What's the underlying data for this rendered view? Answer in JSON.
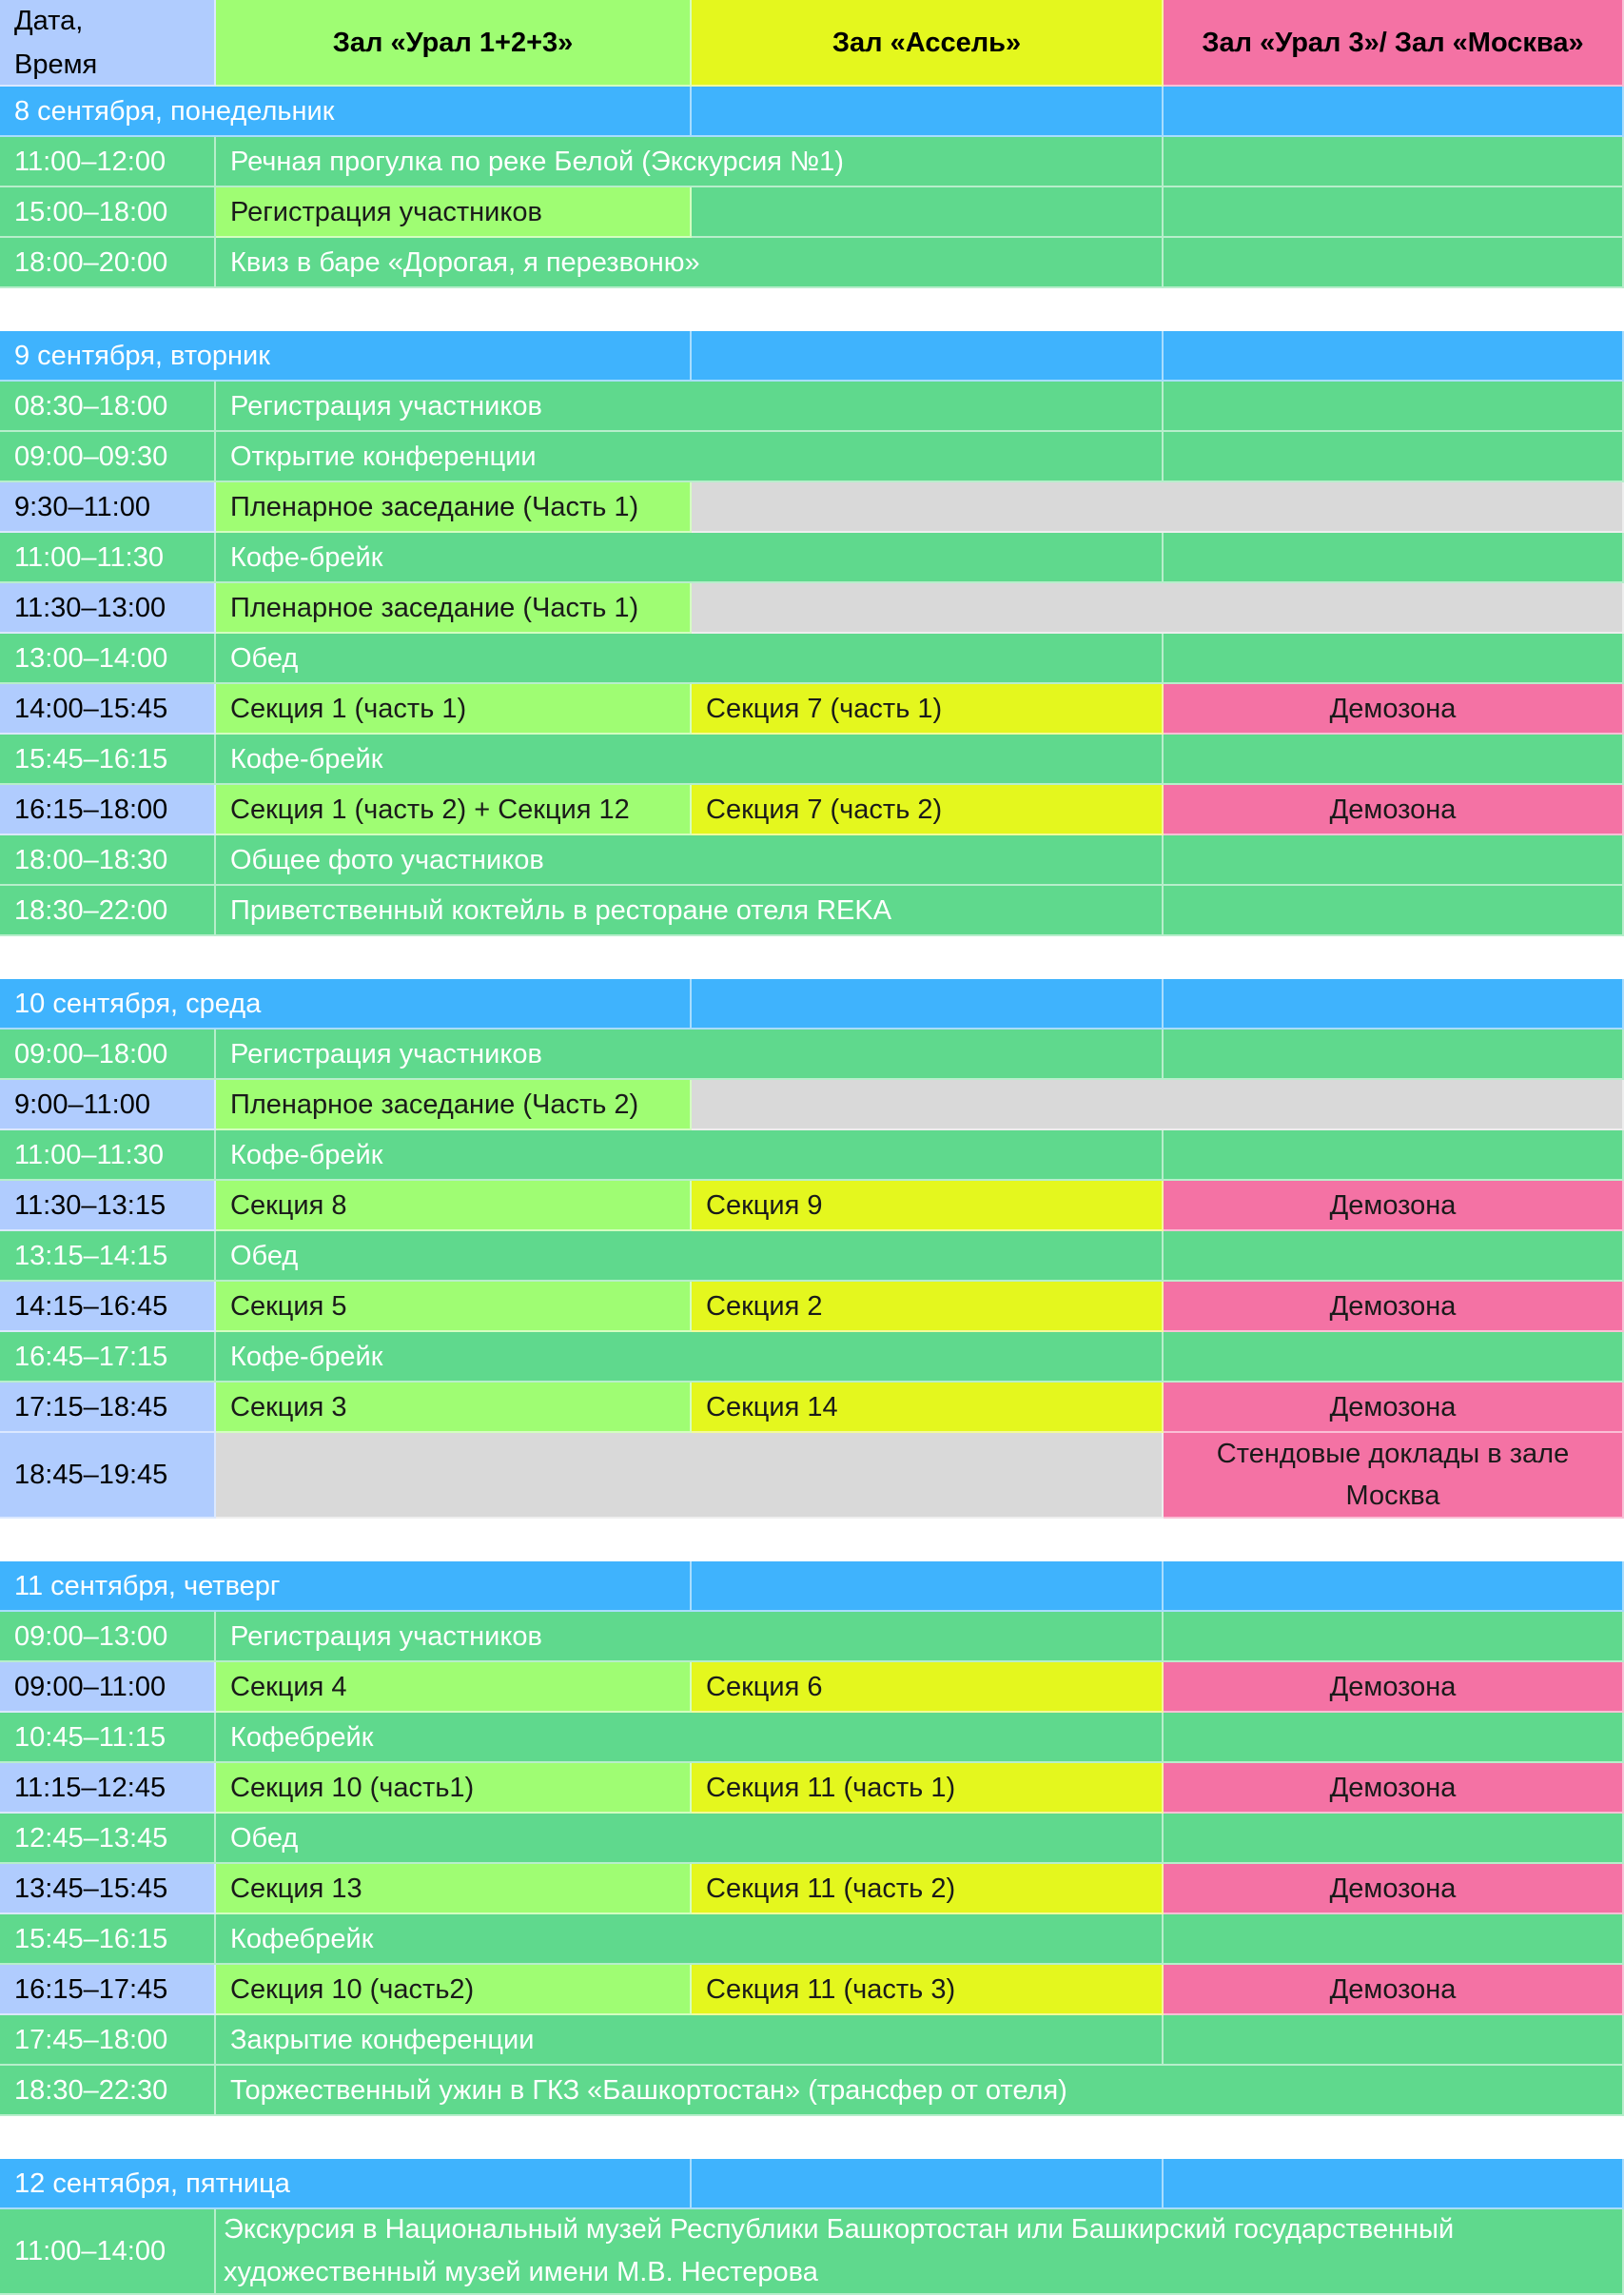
{
  "colors": {
    "day_header": "#3fb3fd",
    "common": "#5fd98d",
    "hall_ural": "#9ffd73",
    "hall_assel": "#e4f71e",
    "hall_moscow": "#f472a4",
    "empty": "#d9d9d9",
    "time_highlight": "#b0ccfe"
  },
  "header": {
    "datetime": "Дата,\nВремя",
    "hall_ural": "Зал «Урал 1+2+3»",
    "hall_assel": "Зал «Ассель»",
    "hall_moscow": "Зал «Урал 3»/ Зал «Москва»"
  },
  "days": [
    {
      "title": "8 сентября, понедельник",
      "rows": [
        {
          "time": "11:00–12:00",
          "kind": "full",
          "text": "Речная прогулка по реке Белой (Экскурсия №1)"
        },
        {
          "time": "15:00–18:00",
          "kind": "ural",
          "text": "Регистрация участников"
        },
        {
          "time": "18:00–20:00",
          "kind": "full",
          "text": "Квиз в баре «Дорогая, я перезвоню»"
        }
      ]
    },
    {
      "title": "9 сентября, вторник",
      "rows": [
        {
          "time": "08:30–18:00",
          "kind": "full",
          "text": "Регистрация участников"
        },
        {
          "time": "09:00–09:30",
          "kind": "full",
          "text": "Открытие конференции"
        },
        {
          "time": "9:30–11:00",
          "kind": "plenary",
          "text": "Пленарное заседание (Часть 1)"
        },
        {
          "time": "11:00–11:30",
          "kind": "full",
          "text": "Кофе-брейк"
        },
        {
          "time": "11:30–13:00",
          "kind": "plenary",
          "text": "Пленарное заседание (Часть 1)"
        },
        {
          "time": "13:00–14:00",
          "kind": "full",
          "text": "Обед"
        },
        {
          "time": "14:00–15:45",
          "kind": "sections",
          "ural": "Секция 1 (часть 1)",
          "assel": "Секция 7 (часть 1)",
          "moscow": "Демозона"
        },
        {
          "time": "15:45–16:15",
          "kind": "full",
          "text": "Кофе-брейк"
        },
        {
          "time": "16:15–18:00",
          "kind": "sections",
          "ural": "Секция 1 (часть 2) + Секция 12",
          "assel": "Секция 7 (часть 2)",
          "moscow": "Демозона"
        },
        {
          "time": "18:00–18:30",
          "kind": "full",
          "text": "Общее фото  участников"
        },
        {
          "time": "18:30–22:00",
          "kind": "full",
          "text": "Приветственный коктейль в ресторане отеля REKA"
        }
      ]
    },
    {
      "title": "10 сентября, среда",
      "rows": [
        {
          "time": "09:00–18:00",
          "kind": "full",
          "text": "Регистрация участников"
        },
        {
          "time": "9:00–11:00",
          "kind": "plenary",
          "text": "Пленарное заседание (Часть 2)"
        },
        {
          "time": "11:00–11:30",
          "kind": "full",
          "text": "Кофе-брейк"
        },
        {
          "time": "11:30–13:15",
          "kind": "sections",
          "ural": "Секция 8",
          "assel": "Секция 9",
          "moscow": "Демозона"
        },
        {
          "time": "13:15–14:15",
          "kind": "full",
          "text": "Обед"
        },
        {
          "time": "14:15–16:45",
          "kind": "sections",
          "ural": "Секция 5",
          "assel": "Секция 2",
          "moscow": "Демозона"
        },
        {
          "time": "16:45–17:15",
          "kind": "full",
          "text": "Кофе-брейк"
        },
        {
          "time": "17:15–18:45",
          "kind": "sections",
          "ural": "Секция 3",
          "assel": "Секция 14",
          "moscow": "Демозона"
        },
        {
          "time": "18:45–19:45",
          "kind": "poster",
          "moscow": "Стендовые доклады в зале Москва"
        }
      ]
    },
    {
      "title": "11 сентября, четверг",
      "rows": [
        {
          "time": "09:00–13:00",
          "kind": "full",
          "text": "Регистрация участников"
        },
        {
          "time": "09:00–11:00",
          "kind": "sections",
          "ural": "Секция 4",
          "assel": "Секция 6",
          "moscow": "Демозона"
        },
        {
          "time": "10:45–11:15",
          "kind": "full",
          "text": "Кофебрейк"
        },
        {
          "time": "11:15–12:45",
          "kind": "sections",
          "ural": "Секция 10 (часть1)",
          "assel": "Секция 11 (часть 1)",
          "moscow": "Демозона"
        },
        {
          "time": "12:45–13:45",
          "kind": "full",
          "text": "Обед"
        },
        {
          "time": "13:45–15:45",
          "kind": "sections",
          "ural": "Секция 13",
          "assel": "Секция 11 (часть 2)",
          "moscow": "Демозона"
        },
        {
          "time": "15:45–16:15",
          "kind": "full",
          "text": "Кофебрейк"
        },
        {
          "time": "16:15–17:45",
          "kind": "sections",
          "ural": "Секция 10 (часть2)",
          "assel": "Секция 11 (часть 3)",
          "moscow": "Демозона"
        },
        {
          "time": "17:45–18:00",
          "kind": "full",
          "text": "Закрытие конференции"
        },
        {
          "time": "18:30–22:30",
          "kind": "span",
          "text": "Торжественный ужин в ГКЗ «Башкортостан» (трансфер от отеля)"
        }
      ]
    },
    {
      "title": "12 сентября, пятница",
      "rows": [
        {
          "time": "11:00–14:00",
          "kind": "excursion",
          "text": "Экскурсия в Национальный музей Республики Башкортостан или Башкирский государственный художественный музей имени М.В. Нестерова"
        }
      ]
    }
  ]
}
